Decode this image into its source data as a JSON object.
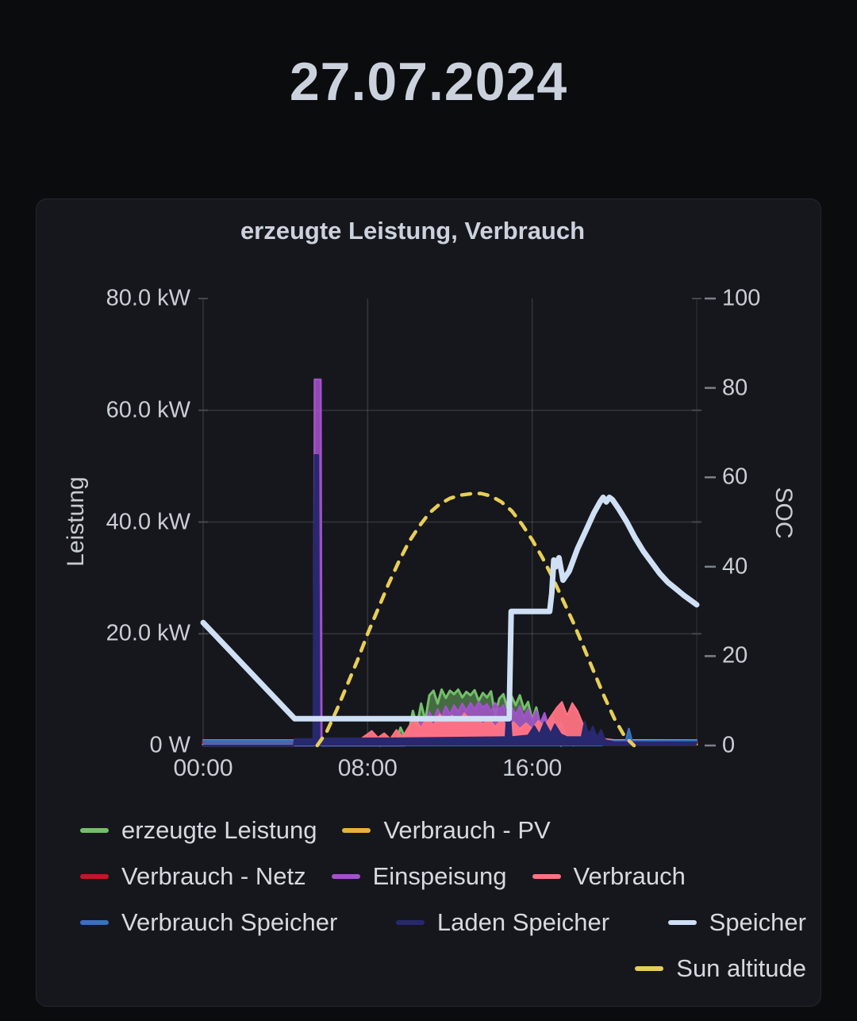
{
  "page": {
    "title": "27.07.2024"
  },
  "panel": {
    "title": "erzeugte Leistung, Verbrauch"
  },
  "chart_data": {
    "type": "line",
    "title": "erzeugte Leistung, Verbrauch",
    "grid": true,
    "legend_position": "bottom",
    "x_axis": {
      "unit": "hours",
      "range": [
        0,
        24
      ],
      "ticks": [
        {
          "h": 0,
          "label": "00:00"
        },
        {
          "h": 8,
          "label": "08:00"
        },
        {
          "h": 16,
          "label": "16:00"
        }
      ]
    },
    "axes": {
      "left": {
        "label": "Leistung",
        "min": 0,
        "max": 80,
        "ticks": [
          {
            "v": 80,
            "label": "80.0 kW"
          },
          {
            "v": 60,
            "label": "60.0 kW"
          },
          {
            "v": 40,
            "label": "40.0 kW"
          },
          {
            "v": 20,
            "label": "20.0 kW"
          },
          {
            "v": 0,
            "label": "0 W"
          }
        ],
        "gridlines": [
          20,
          40,
          60
        ]
      },
      "right": {
        "label": "SOC",
        "min": 0,
        "max": 100,
        "ticks": [
          {
            "v": 100,
            "label": "100"
          },
          {
            "v": 80,
            "label": "80"
          },
          {
            "v": 60,
            "label": "60"
          },
          {
            "v": 40,
            "label": "40"
          },
          {
            "v": 20,
            "label": "20"
          },
          {
            "v": 0,
            "label": "0"
          }
        ]
      }
    },
    "colors": {
      "grid": "rgba(255,255,255,0.13)",
      "edge_tick": "#45474d",
      "right_axis_tick": "#7c818a"
    },
    "series": [
      {
        "name": "erzeugte Leistung",
        "color": "#73bf69",
        "axis": "left",
        "kind": "area",
        "fill_opacity": 0.5,
        "width": 3,
        "z": 2,
        "points": [
          [
            8.6,
            0
          ],
          [
            8.8,
            0.8
          ],
          [
            9.0,
            0.4
          ],
          [
            9.2,
            1.5
          ],
          [
            9.4,
            0.8
          ],
          [
            9.6,
            3.2
          ],
          [
            9.8,
            1.5
          ],
          [
            10.0,
            2.5
          ],
          [
            10.2,
            6.2
          ],
          [
            10.4,
            3.5
          ],
          [
            10.6,
            7.5
          ],
          [
            10.8,
            4.5
          ],
          [
            11.0,
            9.0
          ],
          [
            11.2,
            9.8
          ],
          [
            11.4,
            7.5
          ],
          [
            11.6,
            10.0
          ],
          [
            11.8,
            8.5
          ],
          [
            12.0,
            9.8
          ],
          [
            12.2,
            9.2
          ],
          [
            12.4,
            10.0
          ],
          [
            12.6,
            8.6
          ],
          [
            12.8,
            9.6
          ],
          [
            13.0,
            9.0
          ],
          [
            13.2,
            9.9
          ],
          [
            13.4,
            8.0
          ],
          [
            13.6,
            9.4
          ],
          [
            13.8,
            8.6
          ],
          [
            14.0,
            9.7
          ],
          [
            14.2,
            5.5
          ],
          [
            14.4,
            8.4
          ],
          [
            14.6,
            9.2
          ],
          [
            14.8,
            6.5
          ],
          [
            15.0,
            8.8
          ],
          [
            15.2,
            7.2
          ],
          [
            15.4,
            9.0
          ],
          [
            15.6,
            6.5
          ],
          [
            15.8,
            7.8
          ],
          [
            16.0,
            4.5
          ],
          [
            16.2,
            6.8
          ],
          [
            16.4,
            3.5
          ],
          [
            16.6,
            5.5
          ],
          [
            16.8,
            2.0
          ],
          [
            17.0,
            3.5
          ],
          [
            17.2,
            1.0
          ],
          [
            17.4,
            0
          ]
        ]
      },
      {
        "name": "Verbrauch - PV",
        "color": "#e5b13a",
        "axis": "left",
        "kind": "line",
        "width": 3,
        "z": 1,
        "points": [
          [
            0,
            0.2
          ],
          [
            24,
            0.2
          ]
        ]
      },
      {
        "name": "Verbrauch - Netz",
        "color": "#c4162a",
        "axis": "left",
        "kind": "line",
        "width": 3.5,
        "z": 5,
        "points": [
          [
            0,
            0.55
          ],
          [
            4.4,
            0.55
          ],
          [
            4.6,
            0.35
          ],
          [
            9.5,
            0.3
          ],
          [
            18.5,
            0.3
          ],
          [
            19.0,
            0.5
          ],
          [
            24,
            0.55
          ]
        ]
      },
      {
        "name": "Einspeisung",
        "color": "#a352cc",
        "axis": "left",
        "kind": "area",
        "fill_opacity": 0.85,
        "width": 2.5,
        "z": 3,
        "points": [
          [
            0,
            0
          ],
          [
            5.38,
            0
          ],
          [
            5.42,
            65.5
          ],
          [
            5.72,
            65.5
          ],
          [
            5.76,
            0
          ],
          [
            9.8,
            0
          ],
          [
            10.0,
            1.0
          ],
          [
            10.2,
            3.0
          ],
          [
            10.4,
            2.0
          ],
          [
            10.6,
            4.5
          ],
          [
            10.8,
            3.0
          ],
          [
            11.0,
            6.0
          ],
          [
            11.2,
            4.5
          ],
          [
            11.4,
            6.5
          ],
          [
            11.6,
            5.0
          ],
          [
            11.8,
            7.0
          ],
          [
            12.0,
            5.5
          ],
          [
            12.2,
            7.2
          ],
          [
            12.4,
            6.0
          ],
          [
            12.6,
            7.5
          ],
          [
            12.8,
            6.2
          ],
          [
            13.0,
            7.6
          ],
          [
            13.2,
            6.5
          ],
          [
            13.4,
            7.8
          ],
          [
            13.6,
            6.8
          ],
          [
            13.8,
            7.4
          ],
          [
            14.0,
            6.0
          ],
          [
            14.2,
            7.6
          ],
          [
            14.4,
            6.4
          ],
          [
            14.6,
            7.2
          ],
          [
            14.8,
            5.0
          ],
          [
            15.0,
            6.8
          ],
          [
            15.2,
            5.5
          ],
          [
            15.4,
            7.0
          ],
          [
            15.6,
            5.0
          ],
          [
            15.8,
            6.5
          ],
          [
            16.0,
            4.5
          ],
          [
            16.2,
            6.2
          ],
          [
            16.4,
            4.0
          ],
          [
            16.6,
            5.8
          ],
          [
            16.8,
            3.5
          ],
          [
            17.0,
            5.0
          ],
          [
            17.2,
            3.0
          ],
          [
            17.4,
            4.2
          ],
          [
            17.6,
            2.0
          ],
          [
            17.8,
            1.0
          ],
          [
            18.0,
            0
          ]
        ]
      },
      {
        "name": "Verbrauch",
        "color": "#ff7383",
        "axis": "left",
        "kind": "area",
        "fill_opacity": 0.95,
        "width": 2,
        "z": 4,
        "points": [
          [
            0,
            1.0
          ],
          [
            4.4,
            1.0
          ],
          [
            4.6,
            0.5
          ],
          [
            5.5,
            0.4
          ],
          [
            6.5,
            0.5
          ],
          [
            7.5,
            0.8
          ],
          [
            7.9,
            1.8
          ],
          [
            8.2,
            2.6
          ],
          [
            8.5,
            1.4
          ],
          [
            8.8,
            2.2
          ],
          [
            9.1,
            1.2
          ],
          [
            9.4,
            2.8
          ],
          [
            9.7,
            1.6
          ],
          [
            10.0,
            3.4
          ],
          [
            10.3,
            4.8
          ],
          [
            10.6,
            3.2
          ],
          [
            10.9,
            5.2
          ],
          [
            11.2,
            3.6
          ],
          [
            11.5,
            5.6
          ],
          [
            11.8,
            4.2
          ],
          [
            12.1,
            5.4
          ],
          [
            12.4,
            4.0
          ],
          [
            12.7,
            5.8
          ],
          [
            13.0,
            4.4
          ],
          [
            13.3,
            5.2
          ],
          [
            13.6,
            3.8
          ],
          [
            13.9,
            4.8
          ],
          [
            14.2,
            3.4
          ],
          [
            14.5,
            4.6
          ],
          [
            14.8,
            3.2
          ],
          [
            15.1,
            4.2
          ],
          [
            15.4,
            3.0
          ],
          [
            15.7,
            4.0
          ],
          [
            16.0,
            3.0
          ],
          [
            16.3,
            4.4
          ],
          [
            16.6,
            3.4
          ],
          [
            16.9,
            5.2
          ],
          [
            17.2,
            6.8
          ],
          [
            17.45,
            7.8
          ],
          [
            17.7,
            5.4
          ],
          [
            17.95,
            7.6
          ],
          [
            18.2,
            6.2
          ],
          [
            18.45,
            4.0
          ],
          [
            18.7,
            2.4
          ],
          [
            19.0,
            1.6
          ],
          [
            19.5,
            1.2
          ],
          [
            20.0,
            1.0
          ],
          [
            24,
            1.0
          ]
        ]
      },
      {
        "name": "Verbrauch Speicher",
        "color": "#3871c1",
        "axis": "left",
        "kind": "area",
        "fill_opacity": 0.85,
        "width": 2.5,
        "z": 6,
        "points": [
          [
            0,
            0.9
          ],
          [
            4.4,
            0.9
          ],
          [
            4.5,
            0.05
          ],
          [
            19.4,
            0.05
          ],
          [
            19.6,
            0.8
          ],
          [
            20.55,
            0.8
          ],
          [
            20.7,
            3.0
          ],
          [
            20.85,
            0.8
          ],
          [
            24,
            0.9
          ]
        ]
      },
      {
        "name": "Laden Speicher",
        "color": "#28286e",
        "axis": "left",
        "kind": "area",
        "fill_opacity": 1,
        "width": 2,
        "z": 7,
        "points": [
          [
            0,
            0
          ],
          [
            4.4,
            0
          ],
          [
            4.45,
            1.2
          ],
          [
            5.35,
            1.2
          ],
          [
            5.42,
            52.0
          ],
          [
            5.6,
            52.0
          ],
          [
            5.66,
            1.3
          ],
          [
            9.0,
            1.3
          ],
          [
            12.0,
            1.4
          ],
          [
            14.7,
            1.5
          ],
          [
            14.78,
            6.5
          ],
          [
            14.92,
            6.5
          ],
          [
            15.0,
            1.5
          ],
          [
            15.8,
            1.8
          ],
          [
            16.1,
            3.5
          ],
          [
            16.35,
            2.0
          ],
          [
            16.6,
            4.2
          ],
          [
            16.9,
            2.2
          ],
          [
            17.1,
            3.8
          ],
          [
            17.4,
            2.0
          ],
          [
            17.7,
            1.5
          ],
          [
            18.4,
            1.5
          ],
          [
            18.55,
            4.3
          ],
          [
            18.75,
            2.0
          ],
          [
            18.95,
            3.4
          ],
          [
            19.15,
            1.5
          ],
          [
            19.35,
            2.8
          ],
          [
            19.55,
            1.0
          ],
          [
            20.0,
            0.6
          ],
          [
            24,
            0.6
          ]
        ]
      },
      {
        "name": "Speicher",
        "color": "#cfe0f5",
        "axis": "right",
        "kind": "line",
        "width": 7,
        "z": 9,
        "points": [
          [
            0,
            27.5
          ],
          [
            4.45,
            6.0
          ],
          [
            14.88,
            6.0
          ],
          [
            14.98,
            30.0
          ],
          [
            16.85,
            30.0
          ],
          [
            16.95,
            34.0
          ],
          [
            17.05,
            41.5
          ],
          [
            17.15,
            40.0
          ],
          [
            17.3,
            42.0
          ],
          [
            17.5,
            37.0
          ],
          [
            17.8,
            39.0
          ],
          [
            18.2,
            44.0
          ],
          [
            18.6,
            48.0
          ],
          [
            19.0,
            52.0
          ],
          [
            19.3,
            54.5
          ],
          [
            19.45,
            55.5
          ],
          [
            19.6,
            54.5
          ],
          [
            19.75,
            55.5
          ],
          [
            19.9,
            55.0
          ],
          [
            20.2,
            53.0
          ],
          [
            20.6,
            50.0
          ],
          [
            21.0,
            46.5
          ],
          [
            21.4,
            43.5
          ],
          [
            21.8,
            41.0
          ],
          [
            22.2,
            38.5
          ],
          [
            22.6,
            36.5
          ],
          [
            23.0,
            35.0
          ],
          [
            23.4,
            33.5
          ],
          [
            23.7,
            32.5
          ],
          [
            24,
            31.5
          ]
        ]
      },
      {
        "name": "Sun altitude",
        "color": "#e7ce56",
        "axis": "right",
        "kind": "line",
        "width": 4.5,
        "dash": "11 11",
        "z": 8,
        "points": [
          [
            5.55,
            0
          ],
          [
            6.0,
            3.0
          ],
          [
            6.5,
            8.0
          ],
          [
            7.0,
            13.5
          ],
          [
            7.5,
            19.0
          ],
          [
            8.0,
            25.0
          ],
          [
            8.5,
            30.5
          ],
          [
            9.0,
            36.0
          ],
          [
            9.5,
            41.0
          ],
          [
            10.0,
            45.5
          ],
          [
            10.5,
            49.0
          ],
          [
            11.0,
            52.0
          ],
          [
            11.5,
            54.0
          ],
          [
            12.0,
            55.3
          ],
          [
            12.5,
            56.0
          ],
          [
            13.0,
            56.3
          ],
          [
            13.5,
            56.4
          ],
          [
            14.0,
            55.8
          ],
          [
            14.5,
            54.5
          ],
          [
            15.0,
            52.5
          ],
          [
            15.5,
            49.5
          ],
          [
            16.0,
            46.0
          ],
          [
            16.5,
            42.0
          ],
          [
            17.0,
            37.5
          ],
          [
            17.5,
            32.5
          ],
          [
            18.0,
            27.5
          ],
          [
            18.5,
            22.0
          ],
          [
            19.0,
            16.5
          ],
          [
            19.5,
            11.0
          ],
          [
            20.0,
            6.0
          ],
          [
            20.5,
            2.0
          ],
          [
            20.95,
            0
          ]
        ]
      }
    ],
    "legend_rows": [
      [
        0,
        1
      ],
      [
        2,
        3,
        4
      ],
      [
        5,
        6,
        7
      ],
      [
        8
      ]
    ]
  }
}
